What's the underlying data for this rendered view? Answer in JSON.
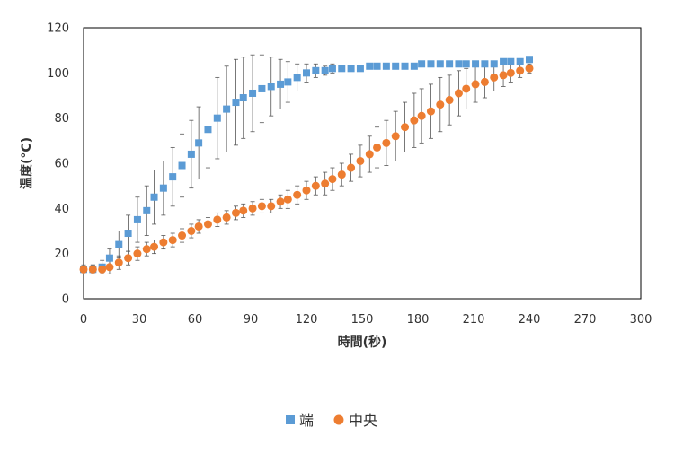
{
  "chart_data": {
    "type": "scatter",
    "xlabel": "時間(秒)",
    "ylabel": "温度(°C)",
    "xlim": [
      0,
      300
    ],
    "ylim": [
      0,
      120
    ],
    "x_ticks": [
      "0",
      "30",
      "60",
      "90",
      "120",
      "150",
      "180",
      "210",
      "240",
      "270",
      "300"
    ],
    "y_ticks": [
      "0",
      "20",
      "40",
      "60",
      "80",
      "100",
      "120"
    ],
    "grid": false,
    "legend_position": "bottom",
    "series": [
      {
        "name": "端",
        "marker": "square",
        "color": "#5B9BD5",
        "x": [
          0,
          5,
          10,
          14,
          19,
          24,
          29,
          34,
          38,
          43,
          48,
          53,
          58,
          62,
          67,
          72,
          77,
          82,
          86,
          91,
          96,
          101,
          106,
          110,
          115,
          120,
          125,
          130,
          134,
          139,
          144,
          149,
          154,
          158,
          163,
          168,
          173,
          178,
          182,
          187,
          192,
          197,
          202,
          206,
          211,
          216,
          221,
          226,
          230,
          235,
          240
        ],
        "y": [
          13,
          13,
          14,
          18,
          24,
          29,
          35,
          39,
          45,
          49,
          54,
          59,
          64,
          69,
          75,
          80,
          84,
          87,
          89,
          91,
          93,
          94,
          95,
          96,
          98,
          100,
          101,
          101,
          102,
          102,
          102,
          102,
          103,
          103,
          103,
          103,
          103,
          103,
          104,
          104,
          104,
          104,
          104,
          104,
          104,
          104,
          104,
          105,
          105,
          105,
          106
        ],
        "error": [
          2,
          2,
          3,
          4,
          6,
          8,
          10,
          11,
          12,
          12,
          13,
          14,
          15,
          16,
          17,
          18,
          19,
          19,
          18,
          17,
          15,
          13,
          11,
          9,
          6,
          4,
          3,
          2,
          2,
          1,
          1,
          1,
          1,
          1,
          1,
          1,
          1,
          1,
          1,
          1,
          1,
          1,
          1,
          1,
          1,
          1,
          1,
          1,
          1,
          1,
          1
        ]
      },
      {
        "name": "中央",
        "marker": "circle",
        "color": "#ED7D31",
        "x": [
          0,
          5,
          10,
          14,
          19,
          24,
          29,
          34,
          38,
          43,
          48,
          53,
          58,
          62,
          67,
          72,
          77,
          82,
          86,
          91,
          96,
          101,
          106,
          110,
          115,
          120,
          125,
          130,
          134,
          139,
          144,
          149,
          154,
          158,
          163,
          168,
          173,
          178,
          182,
          187,
          192,
          197,
          202,
          206,
          211,
          216,
          221,
          226,
          230,
          235,
          240
        ],
        "y": [
          13,
          13,
          13,
          14,
          16,
          18,
          20,
          22,
          23,
          25,
          26,
          28,
          30,
          32,
          33,
          35,
          36,
          38,
          39,
          40,
          41,
          41,
          43,
          44,
          46,
          48,
          50,
          51,
          53,
          55,
          58,
          61,
          64,
          67,
          69,
          72,
          76,
          79,
          81,
          83,
          86,
          88,
          91,
          93,
          95,
          96,
          98,
          99,
          100,
          101,
          102
        ],
        "error": [
          1,
          2,
          2,
          3,
          3,
          3,
          3,
          3,
          3,
          3,
          3,
          3,
          3,
          3,
          3,
          3,
          3,
          3,
          3,
          3,
          3,
          3,
          3,
          4,
          4,
          4,
          4,
          5,
          5,
          5,
          6,
          7,
          8,
          9,
          10,
          11,
          11,
          12,
          12,
          12,
          12,
          11,
          10,
          9,
          8,
          7,
          6,
          5,
          4,
          3,
          2
        ]
      }
    ]
  }
}
